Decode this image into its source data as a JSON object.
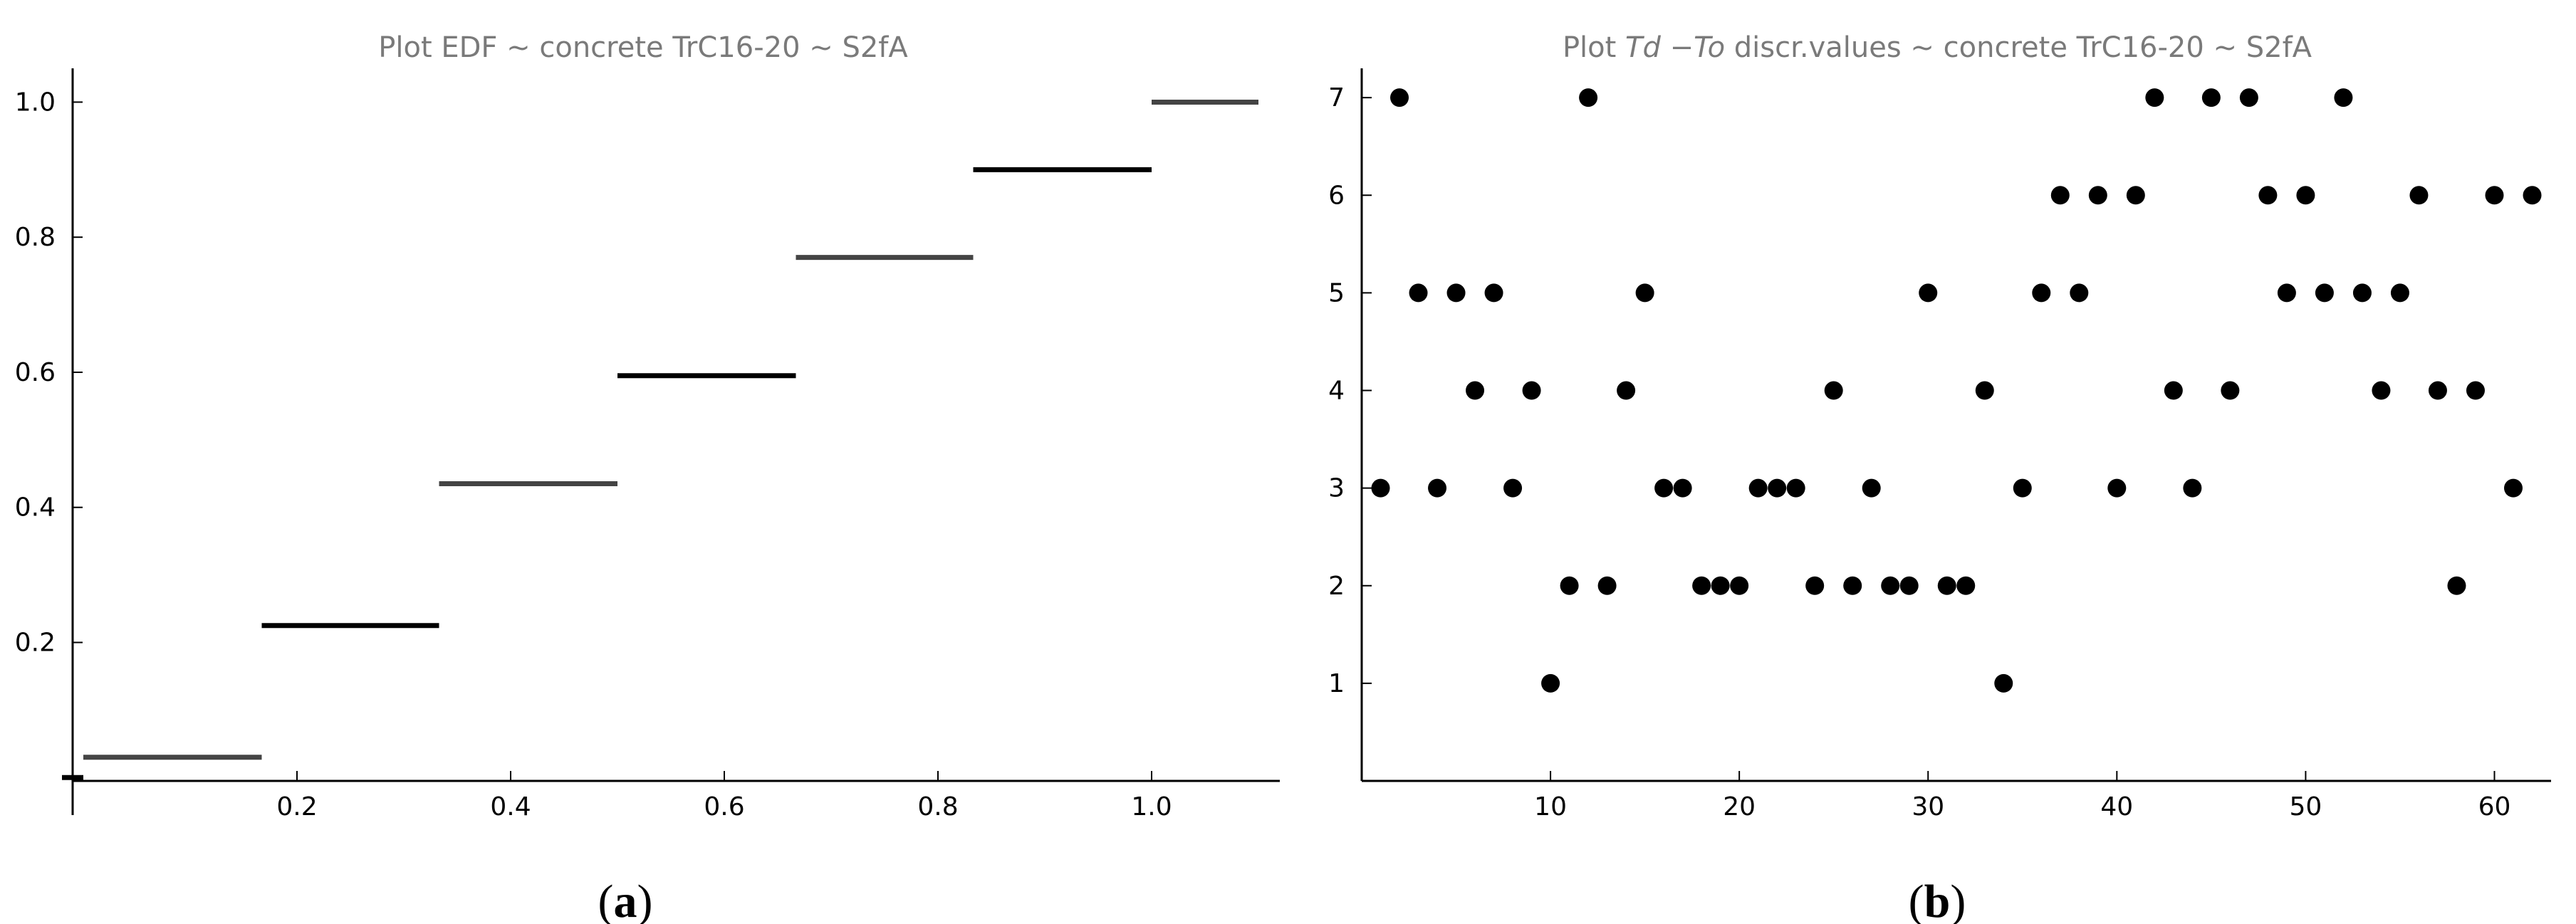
{
  "chart_data": [
    {
      "type": "line",
      "panel": "(a)",
      "panel_letter": "a",
      "title": "Plot EDF ~ concrete TrC16-20 ~ S2fA",
      "xlabel": "",
      "ylabel": "",
      "xlim": [
        -0.01,
        1.12
      ],
      "ylim": [
        -0.005,
        1.05
      ],
      "x_ticks": [
        0.2,
        0.4,
        0.6,
        0.8,
        1.0
      ],
      "x_tick_labels": [
        "0.2",
        "0.4",
        "0.6",
        "0.8",
        "1.0"
      ],
      "y_ticks": [
        0.2,
        0.4,
        0.6,
        0.8,
        1.0
      ],
      "y_tick_labels": [
        "0.2",
        "0.4",
        "0.6",
        "0.8",
        "1.0"
      ],
      "grid": false,
      "series": [
        {
          "steps": [
            {
              "x0": -0.02,
              "x1": 0.0,
              "y": 0.0
            },
            {
              "x0": 0.0,
              "x1": 0.167,
              "y": 0.03
            },
            {
              "x0": 0.167,
              "x1": 0.333,
              "y": 0.225
            },
            {
              "x0": 0.333,
              "x1": 0.5,
              "y": 0.435
            },
            {
              "x0": 0.5,
              "x1": 0.667,
              "y": 0.595
            },
            {
              "x0": 0.667,
              "x1": 0.833,
              "y": 0.77
            },
            {
              "x0": 0.833,
              "x1": 1.0,
              "y": 0.9
            },
            {
              "x0": 1.0,
              "x1": 1.1,
              "y": 1.0
            }
          ]
        }
      ]
    },
    {
      "type": "scatter",
      "panel": "(b)",
      "panel_letter": "b",
      "title": "Plot Td −To discr.values ~ concrete TrC16-20 ~ S2fA",
      "title_parts": [
        "Plot ",
        "Td",
        " −",
        "To",
        " discr.values ~ concrete TrC16-20 ~ S2fA"
      ],
      "xlabel": "",
      "ylabel": "",
      "xlim": [
        0,
        63
      ],
      "ylim": [
        0,
        7.3
      ],
      "x_ticks": [
        10,
        20,
        30,
        40,
        50,
        60
      ],
      "x_tick_labels": [
        "10",
        "20",
        "30",
        "40",
        "50",
        "60"
      ],
      "y_ticks": [
        1,
        2,
        3,
        4,
        5,
        6,
        7
      ],
      "y_tick_labels": [
        "1",
        "2",
        "3",
        "4",
        "5",
        "6",
        "7"
      ],
      "grid": false,
      "series": [
        {
          "x": [
            1,
            2,
            3,
            4,
            5,
            6,
            7,
            8,
            9,
            10,
            11,
            12,
            13,
            14,
            15,
            16,
            17,
            18,
            19,
            20,
            21,
            22,
            23,
            24,
            25,
            26,
            27,
            28,
            29,
            30,
            31,
            32,
            33,
            34,
            35,
            36,
            37,
            38,
            39,
            40,
            41,
            42,
            43,
            44,
            45,
            46,
            47,
            48,
            49,
            50,
            51,
            52,
            53,
            54,
            55,
            56,
            57,
            58,
            59,
            60,
            61,
            62
          ],
          "y": [
            3,
            7,
            5,
            3,
            5,
            4,
            5,
            3,
            4,
            1,
            2,
            7,
            2,
            4,
            5,
            3,
            3,
            2,
            2,
            2,
            3,
            3,
            3,
            2,
            4,
            2,
            3,
            2,
            2,
            5,
            2,
            2,
            4,
            1,
            3,
            5,
            6,
            5,
            6,
            3,
            6,
            7,
            4,
            3,
            7,
            4,
            7,
            6,
            5,
            6,
            5,
            7,
            5,
            4,
            5,
            6,
            4,
            2,
            4,
            6,
            3,
            6
          ]
        }
      ]
    }
  ]
}
